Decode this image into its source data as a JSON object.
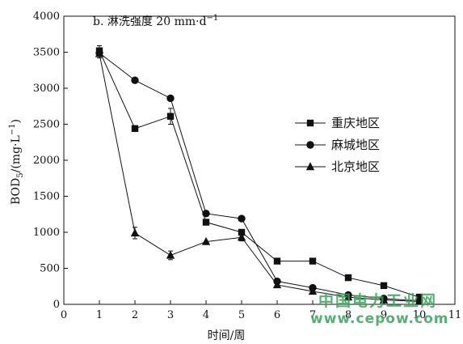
{
  "chart_data": {
    "type": "line",
    "title": "b. 淋洗强度 20 mm·d",
    "title_superscript": "−1",
    "xlabel": "时间/周",
    "ylabel_main": "BOD",
    "ylabel_sub": "5",
    "ylabel_unit": "/(mg·L",
    "ylabel_sup": "−1",
    "ylabel_end": ")",
    "xlim": [
      0,
      11
    ],
    "ylim": [
      0,
      4000
    ],
    "x_ticks": [
      0,
      1,
      2,
      3,
      4,
      5,
      6,
      7,
      8,
      9,
      10,
      11
    ],
    "y_ticks": [
      0,
      500,
      1000,
      1500,
      2000,
      2500,
      3000,
      3500,
      4000
    ],
    "legend_position": "right",
    "grid": false,
    "series": [
      {
        "name": "重庆地区",
        "marker": "square",
        "x": [
          1,
          2,
          3,
          4,
          5,
          6,
          7,
          8,
          9,
          10
        ],
        "y": [
          3520,
          2440,
          2610,
          1140,
          1000,
          600,
          600,
          370,
          260,
          100
        ],
        "err": [
          70,
          0,
          110,
          0,
          0,
          0,
          0,
          0,
          0,
          0
        ]
      },
      {
        "name": "麻城地区",
        "marker": "circle",
        "x": [
          1,
          2,
          3,
          4,
          5,
          6,
          7,
          8,
          9,
          10
        ],
        "y": [
          3490,
          3110,
          2860,
          1260,
          1190,
          320,
          230,
          130,
          80,
          50
        ],
        "err": [
          0,
          0,
          0,
          0,
          0,
          0,
          0,
          0,
          0,
          0
        ]
      },
      {
        "name": "北京地区",
        "marker": "triangle",
        "x": [
          1,
          2,
          3,
          4,
          5,
          6,
          7,
          8,
          9,
          10
        ],
        "y": [
          3480,
          990,
          680,
          870,
          930,
          270,
          180,
          100,
          60,
          40
        ],
        "err": [
          60,
          80,
          60,
          0,
          50,
          40,
          30,
          0,
          0,
          0
        ]
      }
    ]
  },
  "watermark": {
    "cn": "中国电力工业网",
    "url": "www.cepow.com",
    "color": "#3aa35a"
  }
}
